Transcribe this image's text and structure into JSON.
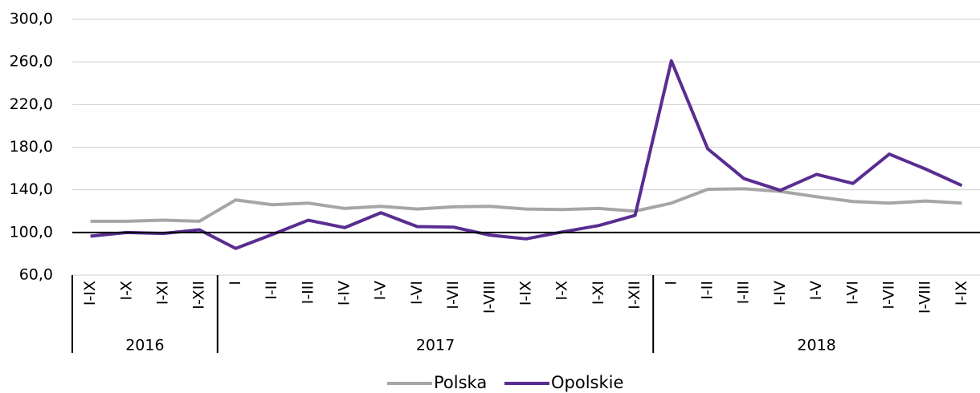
{
  "chart_data": {
    "type": "line",
    "categories": [
      "I-IX",
      "I-X",
      "I-XI",
      "I-XII",
      "I",
      "I-II",
      "I-III",
      "I-IV",
      "I-V",
      "I-VI",
      "I-VII",
      "I-VIII",
      "I-IX",
      "I-X",
      "I-XI",
      "I-XII",
      "I",
      "I-II",
      "I-III",
      "I-IV",
      "I-V",
      "I-VI",
      "I-VII",
      "I-VIII",
      "I-IX"
    ],
    "groups": [
      {
        "label": "2016",
        "span": 4
      },
      {
        "label": "2017",
        "span": 12
      },
      {
        "label": "2018",
        "span": 9
      }
    ],
    "series": [
      {
        "name": "Polska",
        "color": "#a6a6a6",
        "values": [
          110.5,
          110.5,
          111.5,
          110.5,
          130.5,
          126,
          127.5,
          122.5,
          124.5,
          122,
          124,
          124.5,
          122,
          121.5,
          122.5,
          120,
          127.5,
          140.5,
          141,
          138.5,
          133.5,
          129,
          127.5,
          129.5,
          127.5
        ]
      },
      {
        "name": "Opolskie",
        "color": "#5a2d91",
        "values": [
          96.5,
          100,
          99,
          102.5,
          85,
          98,
          111.5,
          104.5,
          118.5,
          105.5,
          105,
          97.5,
          94,
          100.5,
          106.5,
          116,
          261,
          178.5,
          150.5,
          139.5,
          154.5,
          146,
          173.5,
          159.5,
          144
        ]
      }
    ],
    "ylim": [
      60,
      300
    ],
    "yticks": [
      {
        "value": 60,
        "label": "60,0"
      },
      {
        "value": 100,
        "label": "100,0"
      },
      {
        "value": 140,
        "label": "140,0"
      },
      {
        "value": 180,
        "label": "180,0"
      },
      {
        "value": 220,
        "label": "220,0"
      },
      {
        "value": 260,
        "label": "260,0"
      },
      {
        "value": 300,
        "label": "300,0"
      }
    ],
    "baseline": 100,
    "grid": true,
    "legend": "bottom"
  }
}
